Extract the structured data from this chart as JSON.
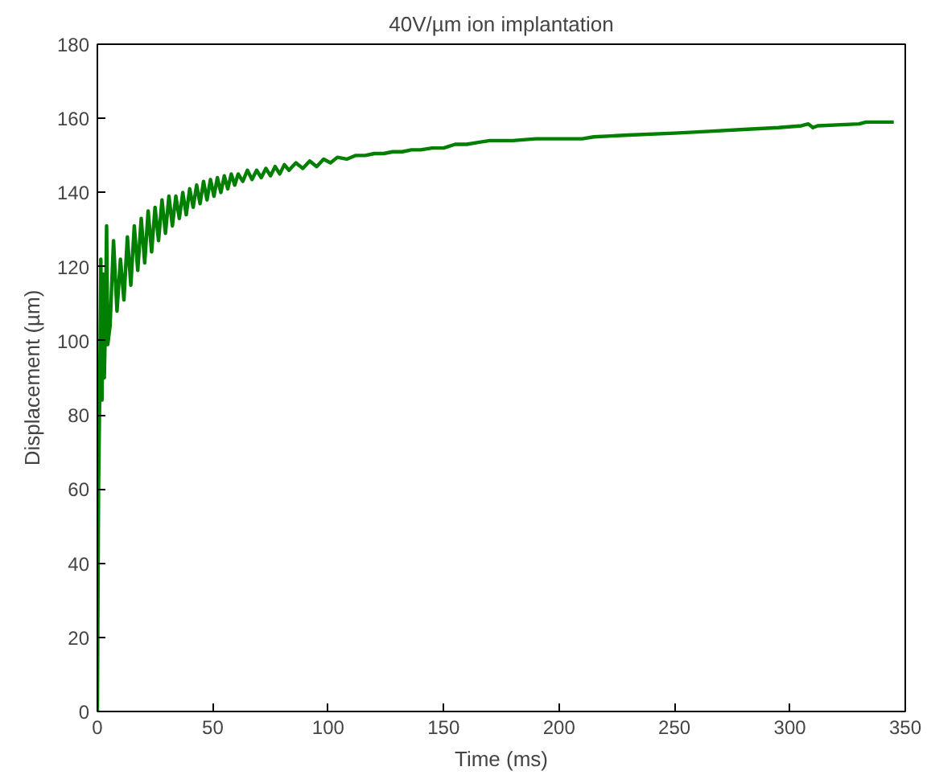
{
  "chart_data": {
    "type": "line",
    "title": "40V/µm ion implantation",
    "xlabel": "Time (ms)",
    "ylabel": "Displacement (µm)",
    "xlim": [
      0,
      350
    ],
    "xticks": [
      0,
      50,
      100,
      150,
      200,
      250,
      300,
      350
    ],
    "ylim": [
      0,
      180
    ],
    "yticks": [
      0,
      20,
      40,
      60,
      80,
      100,
      120,
      140,
      160,
      180
    ],
    "grid": false,
    "series": [
      {
        "color": "#007f00",
        "x": [
          0,
          0.5,
          1,
          1.5,
          2,
          2.5,
          3,
          3.5,
          4,
          4.5,
          5.5,
          7,
          8.5,
          10,
          11.5,
          13,
          14.5,
          16,
          17.5,
          19,
          20.5,
          22,
          23.5,
          25,
          26.5,
          28,
          29.5,
          31,
          32.5,
          34,
          35.5,
          37,
          38.5,
          40,
          41.5,
          43,
          44.5,
          46,
          47.5,
          49,
          50.5,
          52,
          53.5,
          55,
          56.5,
          58,
          59.5,
          61,
          63,
          65,
          67,
          69,
          71,
          73,
          75,
          77,
          79,
          81,
          83,
          86,
          89,
          92,
          95,
          98,
          101,
          104,
          108,
          112,
          116,
          120,
          124,
          128,
          132,
          136,
          140,
          145,
          150,
          155,
          160,
          165,
          170,
          180,
          190,
          210,
          215,
          230,
          250,
          265,
          280,
          295,
          305,
          308,
          310,
          312,
          330,
          333,
          345
        ],
        "values": [
          0,
          60,
          85,
          122,
          84,
          118,
          90,
          105,
          131,
          99,
          104,
          127,
          108,
          122,
          111,
          128,
          115,
          131,
          119,
          133,
          121,
          135,
          124,
          136,
          127,
          138,
          129,
          139,
          131,
          139,
          133,
          140,
          134,
          141,
          136,
          142,
          137,
          143,
          138,
          143.5,
          139,
          144,
          140,
          144.5,
          141,
          145,
          142,
          145,
          143,
          146,
          143.5,
          146,
          144,
          146.5,
          144.5,
          147,
          145,
          147.5,
          146,
          148,
          146.5,
          148.5,
          147,
          149,
          148,
          149.5,
          149,
          150,
          150,
          150.5,
          150.5,
          151,
          151,
          151.5,
          151.5,
          152,
          152,
          153,
          153,
          153.5,
          154,
          154,
          154.5,
          154.5,
          155,
          155.5,
          156,
          156.5,
          157,
          157.5,
          158,
          158.5,
          157.5,
          158,
          158.5,
          159,
          159
        ]
      }
    ]
  }
}
